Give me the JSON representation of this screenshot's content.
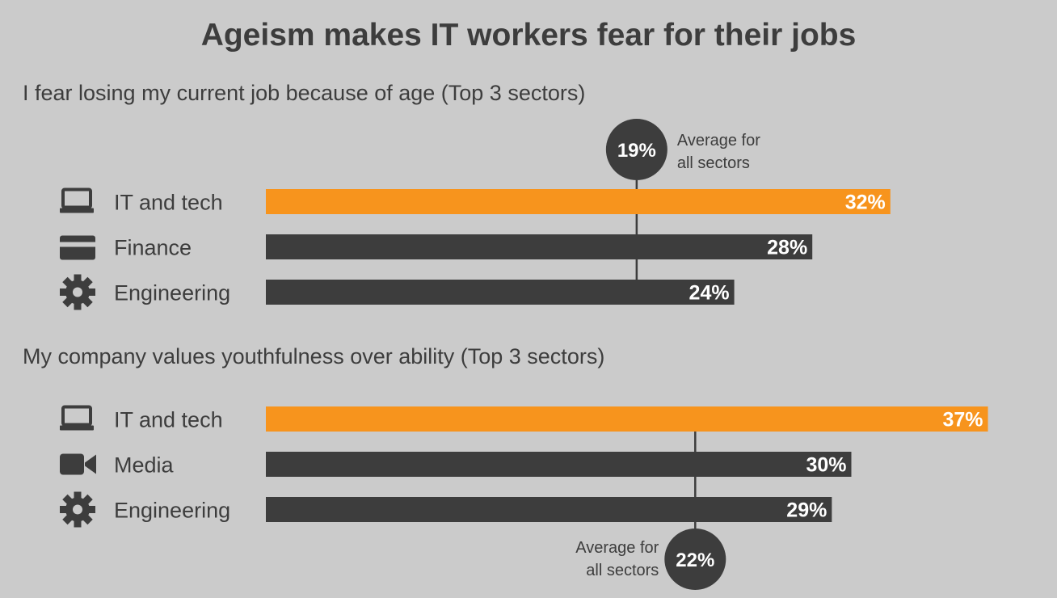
{
  "title": "Ageism makes IT workers fear for their jobs",
  "colors": {
    "highlight": "#f7941d",
    "bar": "#3d3d3d",
    "background": "#cbcbcb"
  },
  "chart_data": [
    {
      "type": "bar",
      "subtitle": "I fear losing my current job because of age (Top 3 sectors)",
      "categories": [
        "IT and tech",
        "Finance",
        "Engineering"
      ],
      "icons": [
        "laptop-icon",
        "credit-card-icon",
        "gear-icon"
      ],
      "values": [
        32,
        28,
        24
      ],
      "value_labels": [
        "32%",
        "28%",
        "24%"
      ],
      "highlight": [
        true,
        false,
        false
      ],
      "average": {
        "value": 19,
        "label": "19%",
        "text": [
          "Average for",
          "all sectors"
        ],
        "placement": "top"
      }
    },
    {
      "type": "bar",
      "subtitle": "My company values youthfulness over ability (Top 3 sectors)",
      "categories": [
        "IT and tech",
        "Media",
        "Engineering"
      ],
      "icons": [
        "laptop-icon",
        "video-camera-icon",
        "gear-icon"
      ],
      "values": [
        37,
        30,
        29
      ],
      "value_labels": [
        "37%",
        "30%",
        "29%"
      ],
      "highlight": [
        true,
        false,
        false
      ],
      "average": {
        "value": 22,
        "label": "22%",
        "text": [
          "Average for",
          "all sectors"
        ],
        "placement": "bottom"
      }
    }
  ]
}
